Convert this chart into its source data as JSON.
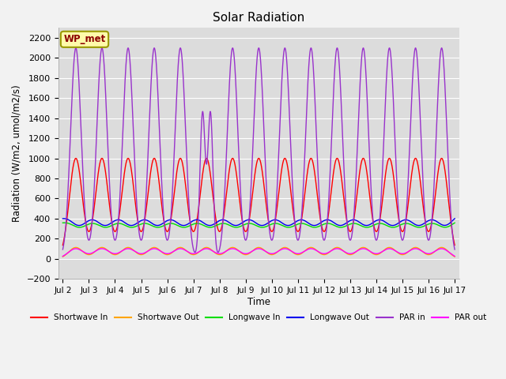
{
  "title": "Solar Radiation",
  "ylabel": "Radiation (W/m2, umol/m2/s)",
  "xlabel": "Time",
  "xlim_days": [
    1.83,
    17.17
  ],
  "ylim": [
    -200,
    2300
  ],
  "yticks": [
    -200,
    0,
    200,
    400,
    600,
    800,
    1000,
    1200,
    1400,
    1600,
    1800,
    2000,
    2200
  ],
  "xtick_labels": [
    "Jul 2",
    "Jul 3",
    "Jul 4",
    "Jul 5",
    "Jul 6",
    "Jul 7",
    "Jul 8",
    "Jul 9",
    "Jul 10",
    "Jul 11",
    "Jul 12",
    "Jul 13",
    "Jul 14",
    "Jul 15",
    "Jul 16",
    "Jul 17"
  ],
  "xtick_positions": [
    2,
    3,
    4,
    5,
    6,
    7,
    8,
    9,
    10,
    11,
    12,
    13,
    14,
    15,
    16,
    17
  ],
  "label_box_text": "WP_met",
  "label_box_facecolor": "#FFFAAA",
  "label_box_edgecolor": "#999900",
  "plot_bg": "#DCDCDC",
  "fig_bg": "#F2F2F2",
  "grid_color": "#FFFFFF",
  "series": {
    "shortwave_in": {
      "color": "#FF0000",
      "label": "Shortwave In"
    },
    "shortwave_out": {
      "color": "#FFA500",
      "label": "Shortwave Out"
    },
    "longwave_in": {
      "color": "#00DD00",
      "label": "Longwave In"
    },
    "longwave_out": {
      "color": "#0000EE",
      "label": "Longwave Out"
    },
    "par_in": {
      "color": "#9933CC",
      "label": "PAR in"
    },
    "par_out": {
      "color": "#FF00FF",
      "label": "PAR out"
    }
  },
  "figsize": [
    6.4,
    4.8
  ],
  "dpi": 100
}
